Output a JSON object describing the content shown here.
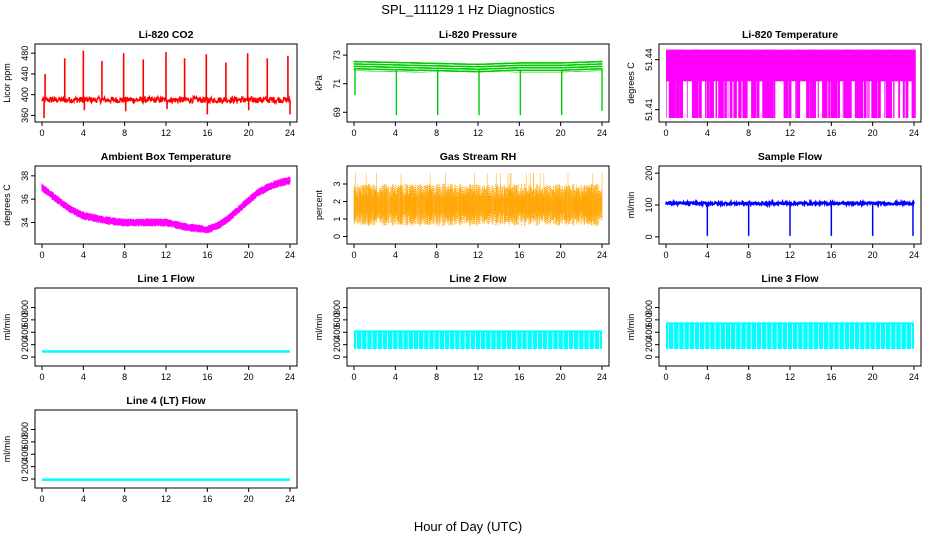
{
  "figure": {
    "title": "SPL_111129  1 Hz Diagnostics",
    "xlabel": "Hour of Day (UTC)"
  },
  "chart_data": [
    {
      "type": "line",
      "title": "Li-820 CO2",
      "ylabel": "Licor ppm",
      "color": "#ff0000",
      "xlim": [
        0,
        24
      ],
      "ylim": [
        355,
        490
      ],
      "xticks": [
        0,
        4,
        8,
        12,
        16,
        20,
        24
      ],
      "yticks": [
        360,
        400,
        440,
        480
      ],
      "ytick_labels": [
        "360",
        "400",
        "440",
        "480"
      ],
      "series": [
        {
          "name": "CO2",
          "baseline": 390,
          "noise": 6,
          "spike_hours": [
            0.3,
            2.2,
            4.0,
            5.8,
            7.9,
            9.8,
            12.0,
            13.8,
            15.9,
            17.8,
            19.9,
            21.8,
            23.8
          ],
          "spike_values": [
            440,
            470,
            485,
            465,
            480,
            468,
            482,
            470,
            478,
            462,
            480,
            470,
            475
          ],
          "dip_hours": [
            0.2,
            4.1,
            8.1,
            12.1,
            16.0,
            20.0,
            24.0
          ],
          "dip_values": [
            355,
            370,
            368,
            372,
            362,
            370,
            362
          ]
        }
      ]
    },
    {
      "type": "line",
      "title": "Li-820 Pressure",
      "ylabel": "kPa",
      "color": "#00cc00",
      "xlim": [
        0,
        24
      ],
      "ylim": [
        68.6,
        73.5
      ],
      "xticks": [
        0,
        4,
        8,
        12,
        16,
        20,
        24
      ],
      "yticks": [
        69,
        71,
        73
      ],
      "ytick_labels": [
        "69",
        "71",
        "73"
      ],
      "series": [
        {
          "name": "Pressure",
          "band": [
            [
              0,
              72.6,
              71.9
            ],
            [
              6,
              72.5,
              71.8
            ],
            [
              12,
              72.4,
              71.8
            ],
            [
              16,
              72.5,
              71.8
            ],
            [
              20,
              72.5,
              71.8
            ],
            [
              24,
              72.6,
              71.9
            ]
          ],
          "dip_hours": [
            0.1,
            4.1,
            8.1,
            12.1,
            16.1,
            20.1,
            24.0
          ],
          "dip_values": [
            70.2,
            68.8,
            68.8,
            68.8,
            68.8,
            68.8,
            69.1
          ]
        }
      ]
    },
    {
      "type": "line",
      "title": "Li-820 Temperature",
      "ylabel": "degrees C",
      "color": "#ff00ff",
      "xlim": [
        0,
        24
      ],
      "ylim": [
        51.405,
        51.447
      ],
      "xticks": [
        0,
        4,
        8,
        12,
        16,
        20,
        24
      ],
      "yticks": [
        51.41,
        51.44
      ],
      "ytick_labels": [
        "51.41",
        "51.44"
      ],
      "series": [
        {
          "name": "Temperature",
          "levels": [
            51.446,
            51.427,
            51.405
          ]
        }
      ]
    },
    {
      "type": "line",
      "title": "Ambient Box Temperature",
      "ylabel": "degrees C",
      "color": "#ff00ff",
      "xlim": [
        0,
        24
      ],
      "ylim": [
        32.5,
        38.5
      ],
      "xticks": [
        0,
        4,
        8,
        12,
        16,
        20,
        24
      ],
      "yticks": [
        34,
        36,
        38
      ],
      "ytick_labels": [
        "34",
        "36",
        "38"
      ],
      "series": [
        {
          "name": "BoxTemp",
          "x": [
            0,
            1,
            2,
            3,
            4,
            5,
            6,
            7,
            8,
            9,
            10,
            11,
            12,
            13,
            14,
            15,
            16,
            17,
            18,
            19,
            20,
            21,
            22,
            23,
            24
          ],
          "values": [
            37.0,
            36.3,
            35.6,
            35.0,
            34.6,
            34.4,
            34.2,
            34.1,
            34.0,
            34.0,
            34.0,
            34.0,
            34.0,
            33.8,
            33.6,
            33.5,
            33.4,
            33.7,
            34.3,
            35.1,
            35.9,
            36.6,
            37.1,
            37.4,
            37.6
          ],
          "noise": 0.35
        }
      ]
    },
    {
      "type": "line",
      "title": "Gas Stream RH",
      "ylabel": "percent",
      "color": "#ffa500",
      "xlim": [
        0,
        24
      ],
      "ylim": [
        -0.2,
        3.8
      ],
      "xticks": [
        0,
        4,
        8,
        12,
        16,
        20,
        24
      ],
      "yticks": [
        0,
        1,
        2,
        3
      ],
      "ytick_labels": [
        "0",
        "1",
        "2",
        "3"
      ],
      "series": [
        {
          "name": "RH",
          "center": 1.8,
          "spread": 1.2,
          "max": 3.6
        }
      ]
    },
    {
      "type": "line",
      "title": "Sample Flow",
      "ylabel": "ml/min",
      "color": "#0000ff",
      "xlim": [
        0,
        24
      ],
      "ylim": [
        -10,
        210
      ],
      "xticks": [
        0,
        4,
        8,
        12,
        16,
        20,
        24
      ],
      "yticks": [
        0,
        100,
        200
      ],
      "ytick_labels": [
        "0",
        "100",
        "200"
      ],
      "series": [
        {
          "name": "SampleFlow",
          "baseline": 105,
          "noise": 4,
          "dip_hours": [
            4.0,
            8.0,
            12.0,
            16.0,
            20.0,
            23.9
          ],
          "dip_values": [
            3,
            3,
            3,
            3,
            3,
            3
          ]
        }
      ]
    },
    {
      "type": "line",
      "title": "Line 1 Flow",
      "ylabel": "ml/min",
      "color": "#00ffff",
      "xlim": [
        0,
        24
      ],
      "ylim": [
        -80,
        1050
      ],
      "xticks": [
        0,
        4,
        8,
        12,
        16,
        20,
        24
      ],
      "yticks": [
        0,
        200,
        400,
        600,
        800
      ],
      "ytick_labels": [
        "0",
        "200",
        "400",
        "600",
        "800"
      ],
      "series": [
        {
          "name": "Line1",
          "high": 110,
          "low": 70
        }
      ]
    },
    {
      "type": "line",
      "title": "Line 2 Flow",
      "ylabel": "ml/min",
      "color": "#00ffff",
      "xlim": [
        0,
        24
      ],
      "ylim": [
        -80,
        1050
      ],
      "xticks": [
        0,
        4,
        8,
        12,
        16,
        20,
        24
      ],
      "yticks": [
        0,
        200,
        400,
        600,
        800
      ],
      "ytick_labels": [
        "0",
        "200",
        "400",
        "600",
        "800"
      ],
      "series": [
        {
          "name": "Line2",
          "high": 430,
          "low": 130
        }
      ]
    },
    {
      "type": "line",
      "title": "Line 3 Flow",
      "ylabel": "ml/min",
      "color": "#00ffff",
      "xlim": [
        0,
        24
      ],
      "ylim": [
        -80,
        1050
      ],
      "xticks": [
        0,
        4,
        8,
        12,
        16,
        20,
        24
      ],
      "yticks": [
        0,
        200,
        400,
        600,
        800
      ],
      "ytick_labels": [
        "0",
        "200",
        "400",
        "600",
        "800"
      ],
      "series": [
        {
          "name": "Line3",
          "high": 560,
          "low": 130
        }
      ]
    },
    {
      "type": "line",
      "title": "Line 4 (LT) Flow",
      "ylabel": "ml/min",
      "color": "#00ffff",
      "xlim": [
        0,
        24
      ],
      "ylim": [
        -80,
        1050
      ],
      "xticks": [
        0,
        4,
        8,
        12,
        16,
        20,
        24
      ],
      "yticks": [
        0,
        200,
        400,
        600,
        800
      ],
      "ytick_labels": [
        "0",
        "200",
        "400",
        "600",
        "800"
      ],
      "series": [
        {
          "name": "Line4",
          "high": 10,
          "low": 0
        }
      ]
    }
  ]
}
